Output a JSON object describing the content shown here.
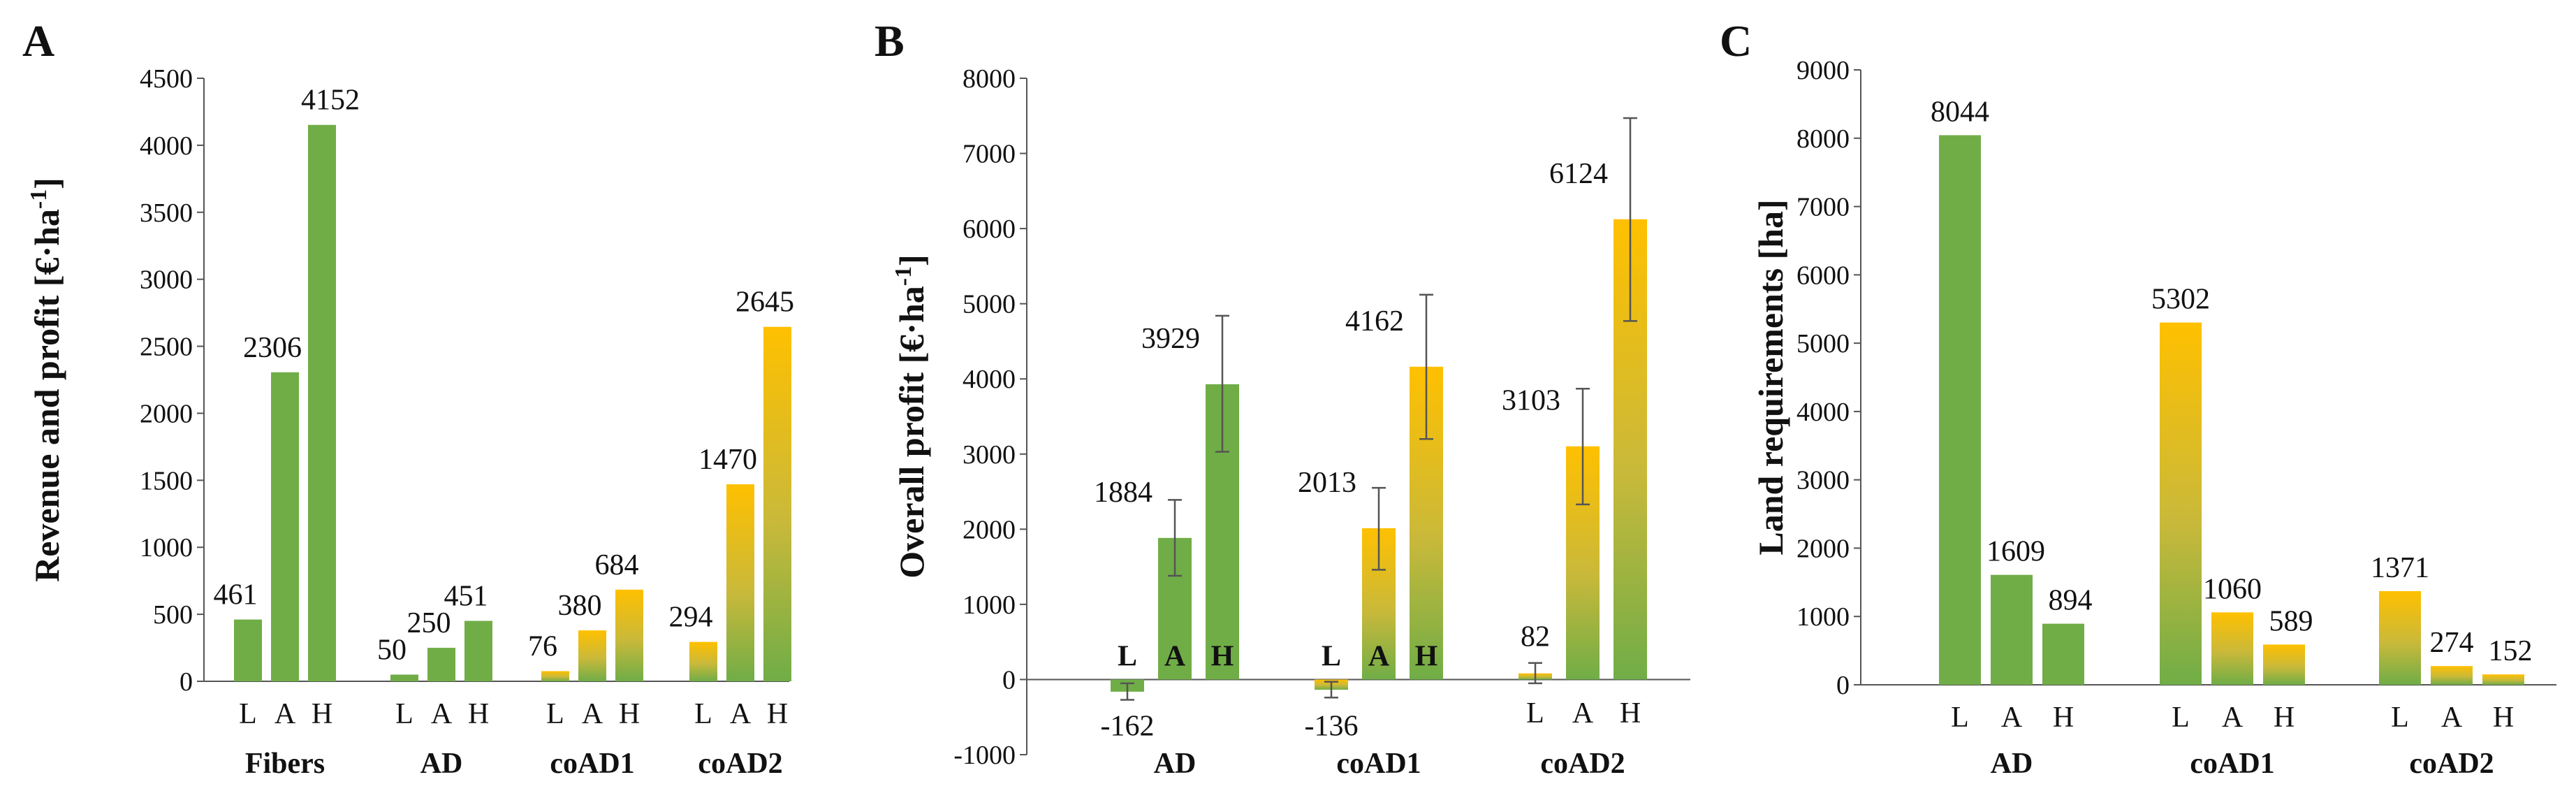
{
  "colors": {
    "green": "#70ad47",
    "gold": "#ffc000",
    "axis": "#555555",
    "error_bar": "#555555"
  },
  "chart_data": [
    {
      "panel": "A",
      "type": "bar",
      "ylabel": "Revenue and profit [€·ha",
      "ylabel_sup": "-1",
      "ylabel_tail": "]",
      "ylim": [
        0,
        4500
      ],
      "yticks": [
        0,
        500,
        1000,
        1500,
        2000,
        2500,
        3000,
        3500,
        4000,
        4500
      ],
      "sublabels": [
        "L",
        "A",
        "H"
      ],
      "groups": [
        {
          "name": "Fibers",
          "values": [
            461,
            2306,
            4152
          ],
          "style": "green"
        },
        {
          "name": "AD",
          "values": [
            50,
            250,
            451
          ],
          "style": "green"
        },
        {
          "name": "coAD1",
          "values": [
            76,
            380,
            684
          ],
          "style": "gradient"
        },
        {
          "name": "coAD2",
          "values": [
            294,
            1470,
            2645
          ],
          "style": "gradient"
        }
      ],
      "data_labels": [
        [
          "461",
          "2306",
          "4152"
        ],
        [
          "50",
          "250",
          "451"
        ],
        [
          "76",
          "380",
          "684"
        ],
        [
          "294",
          "1470",
          "2645"
        ]
      ]
    },
    {
      "panel": "B",
      "type": "bar",
      "ylabel": "Overall profit [€·ha",
      "ylabel_sup": "-1",
      "ylabel_tail": "]",
      "ylim": [
        -1000,
        8000
      ],
      "yticks": [
        -1000,
        0,
        1000,
        2000,
        3000,
        4000,
        5000,
        6000,
        7000,
        8000
      ],
      "sublabels": [
        "L",
        "A",
        "H"
      ],
      "groups": [
        {
          "name": "AD",
          "values": [
            -162,
            1884,
            3929
          ],
          "err_low": [
            -270,
            1380,
            3030
          ],
          "err_high": [
            -50,
            2390,
            4840
          ],
          "style": "green"
        },
        {
          "name": "coAD1",
          "values": [
            -136,
            2013,
            4162
          ],
          "err_low": [
            -240,
            1460,
            3200
          ],
          "err_high": [
            -30,
            2550,
            5120
          ],
          "style": "gradient"
        },
        {
          "name": "coAD2",
          "values": [
            82,
            3103,
            6124
          ],
          "err_low": [
            -50,
            2330,
            4770
          ],
          "err_high": [
            220,
            3870,
            7470
          ],
          "style": "gradient"
        }
      ],
      "data_labels": [
        [
          "-162",
          "1884",
          "3929"
        ],
        [
          "-136",
          "2013",
          "4162"
        ],
        [
          "82",
          "3103",
          "6124"
        ]
      ]
    },
    {
      "panel": "C",
      "type": "bar",
      "ylabel": "Land requirements [ha]",
      "ylim": [
        0,
        9000
      ],
      "yticks": [
        0,
        1000,
        2000,
        3000,
        4000,
        5000,
        6000,
        7000,
        8000,
        9000
      ],
      "sublabels": [
        "L",
        "A",
        "H"
      ],
      "groups": [
        {
          "name": "AD",
          "values": [
            8044,
            1609,
            894
          ],
          "style": "green"
        },
        {
          "name": "coAD1",
          "values": [
            5302,
            1060,
            589
          ],
          "style": "gradient"
        },
        {
          "name": "coAD2",
          "values": [
            1371,
            274,
            152
          ],
          "style": "gradient"
        }
      ],
      "data_labels": [
        [
          "8044",
          "1609",
          "894"
        ],
        [
          "5302",
          "1060",
          "589"
        ],
        [
          "1371",
          "274",
          "152"
        ]
      ]
    }
  ]
}
